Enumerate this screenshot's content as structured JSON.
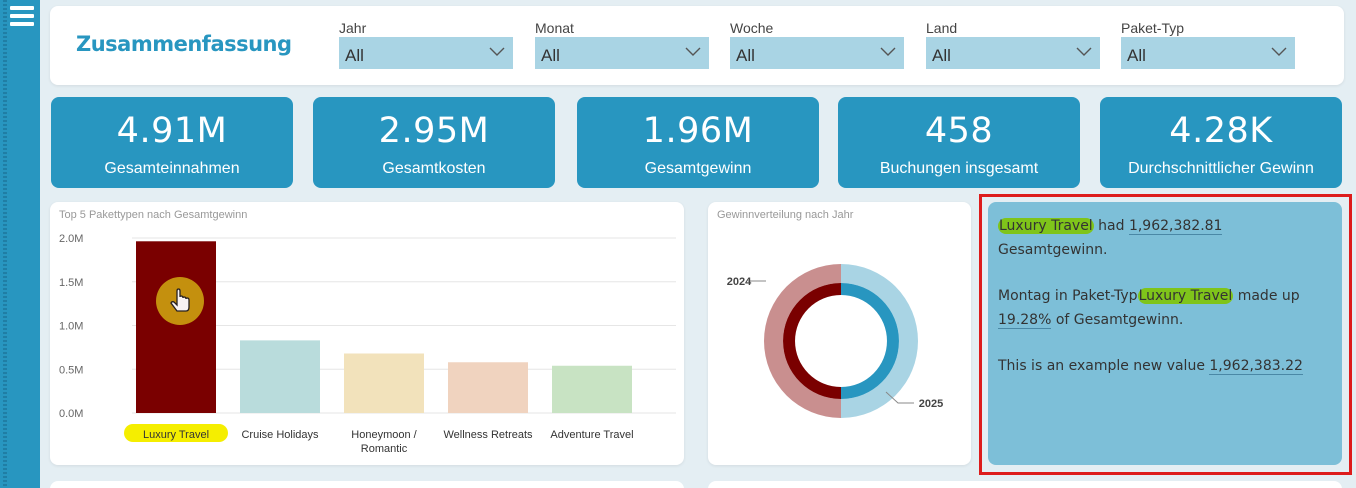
{
  "sidebar": {
    "menu_icon": "hamburger-icon"
  },
  "header": {
    "title": "Zusammenfassung",
    "filters": [
      {
        "label": "Jahr",
        "value": "All"
      },
      {
        "label": "Monat",
        "value": "All"
      },
      {
        "label": "Woche",
        "value": "All"
      },
      {
        "label": "Land",
        "value": "All"
      },
      {
        "label": "Paket-Typ",
        "value": "All"
      }
    ]
  },
  "kpis": [
    {
      "value": "4.91M",
      "label": "Gesamteinnahmen"
    },
    {
      "value": "2.95M",
      "label": "Gesamtkosten"
    },
    {
      "value": "1.96M",
      "label": "Gesamtgewinn"
    },
    {
      "value": "458",
      "label": "Buchungen insgesamt"
    },
    {
      "value": "4.28K",
      "label": "Durchschnittlicher Gewinn"
    }
  ],
  "chart_data": [
    {
      "type": "bar",
      "title": "Top 5 Pakettypen nach Gesamtgewinn",
      "categories": [
        "Luxury Travel",
        "Cruise Holidays",
        "Honeymoon / Romantic",
        "Wellness Retreats",
        "Adventure Travel"
      ],
      "values": [
        1962382.81,
        830000,
        680000,
        580000,
        540000
      ],
      "yticks": [
        "0.0M",
        "0.5M",
        "1.0M",
        "1.5M",
        "2.0M"
      ],
      "ylim": [
        0,
        2000000
      ],
      "colors": [
        "#7a0000",
        "#b9dcdc",
        "#f2e2bb",
        "#f0d3bf",
        "#c8e3c3"
      ],
      "selected": "Luxury Travel",
      "grid": true
    },
    {
      "type": "pie",
      "title": "Gewinnverteilung nach Jahr",
      "series": [
        {
          "name": "2024",
          "value": 50,
          "outer_color": "#c98f8f",
          "inner_color": "#7a0000"
        },
        {
          "name": "2025",
          "value": 50,
          "outer_color": "#a9d4e4",
          "inner_color": "#2896c0"
        }
      ]
    }
  ],
  "narrative": {
    "p1": {
      "pkg": "Luxury Travel",
      "t1": " had ",
      "num": "1,962,382.81",
      "t2": " Gesamtgewinn."
    },
    "p2": {
      "t1": "Montag in Paket-Typ",
      "pkg": "Luxury Travel",
      "t2": " made up ",
      "num": "19.28%",
      "t3": " of Gesamtgewinn."
    },
    "p3": {
      "t1": "This is an example new value ",
      "num": "1,962,383.22"
    }
  },
  "colors": {
    "accent": "#2896c0",
    "selection_frame": "#dd1c1c",
    "highlight": "#7fc41a"
  }
}
